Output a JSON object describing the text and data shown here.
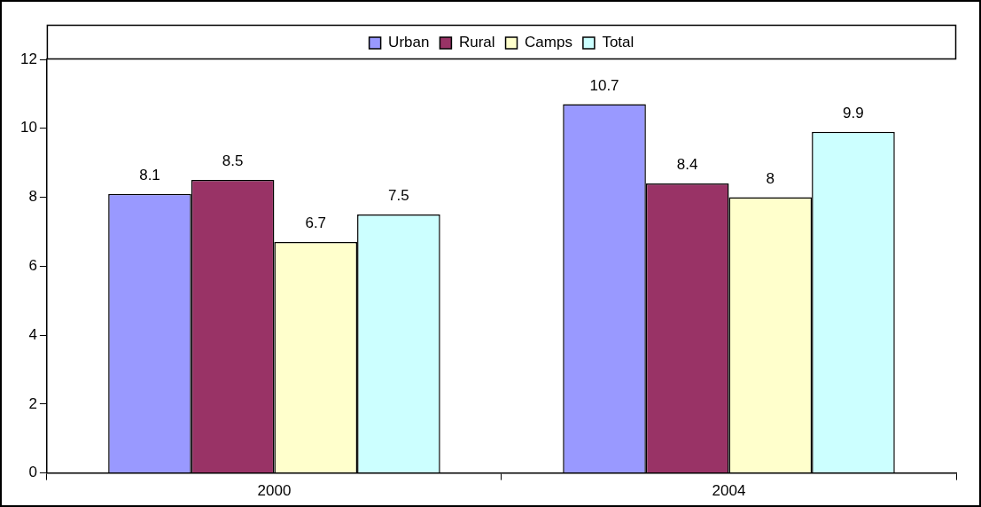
{
  "chart_data": {
    "type": "bar",
    "categories": [
      "2000",
      "2004"
    ],
    "series": [
      {
        "name": "Urban",
        "color": "#9999ff",
        "values": [
          8.1,
          10.7
        ]
      },
      {
        "name": "Rural",
        "color": "#993366",
        "values": [
          8.5,
          8.4
        ]
      },
      {
        "name": "Camps",
        "color": "#ffffcc",
        "values": [
          6.7,
          8
        ]
      },
      {
        "name": "Total",
        "color": "#ccffff",
        "values": [
          7.5,
          9.9
        ]
      }
    ],
    "ylim": [
      0,
      12
    ],
    "yticks": [
      0,
      2,
      4,
      6,
      8,
      10,
      12
    ],
    "grid": false,
    "legend": "top",
    "data_labels": true
  }
}
